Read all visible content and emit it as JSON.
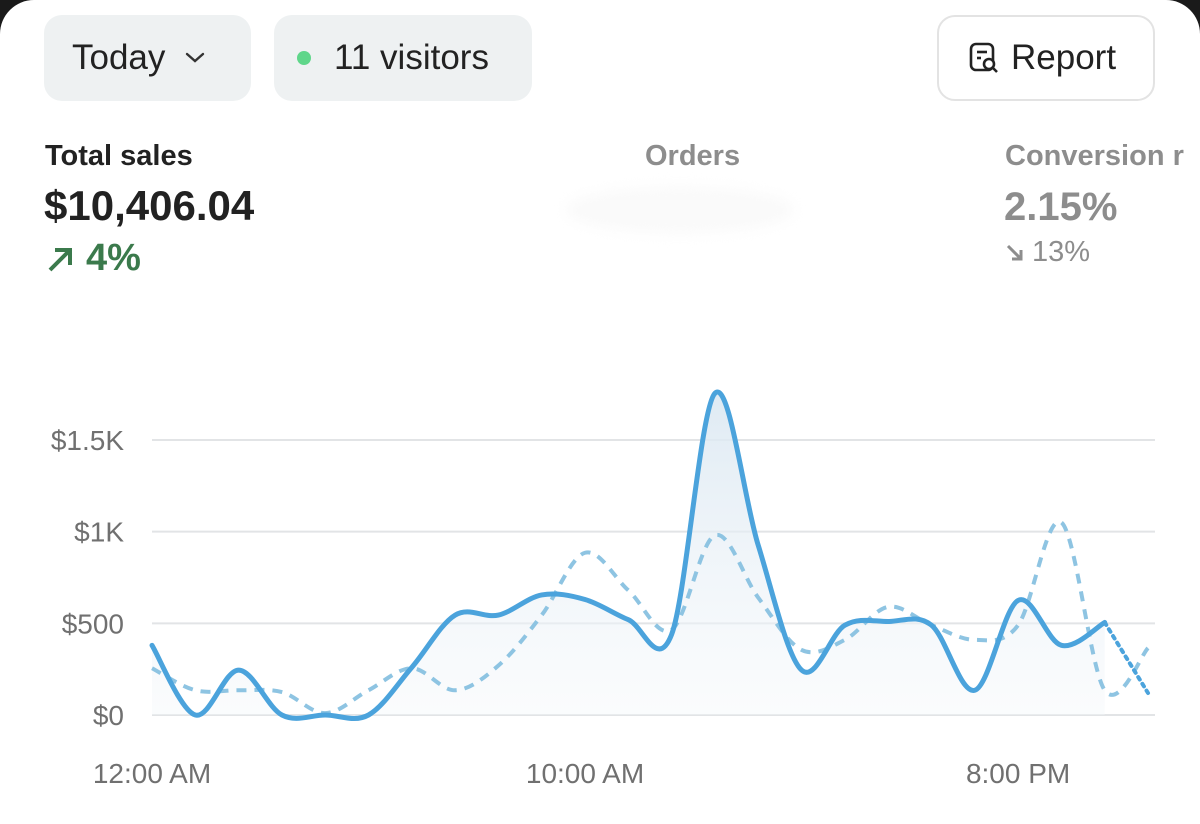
{
  "header": {
    "period": "Today",
    "visitors": "11 visitors",
    "report_button": "Report"
  },
  "metrics": [
    {
      "label": "Total sales",
      "value": "$10,406.04",
      "change": "4%"
    },
    {
      "label": "Orders"
    },
    {
      "label": "Conversion r",
      "value": "2.15%",
      "change": "13%"
    }
  ],
  "chart_data": {
    "type": "line",
    "categories": [
      "12:00 AM",
      null,
      null,
      null,
      null,
      null,
      null,
      null,
      null,
      null,
      "10:00 AM",
      null,
      null,
      null,
      null,
      null,
      null,
      null,
      null,
      null,
      "8:00 PM",
      null,
      null,
      null
    ],
    "series": [
      {
        "color": "#4ba3dc",
        "values": [
          380,
          0,
          245,
          0,
          0,
          0,
          260,
          545,
          545,
          655,
          630,
          520,
          440,
          1755,
          925,
          245,
          490,
          510,
          490,
          135,
          625,
          380,
          505,
          120
        ]
      },
      {
        "color": "#8ec4e2",
        "dash": "dashed",
        "values": [
          255,
          135,
          135,
          125,
          10,
          135,
          255,
          135,
          270,
          545,
          885,
          680,
          465,
          980,
          640,
          355,
          410,
          590,
          490,
          410,
          490,
          1050,
          135,
          365
        ]
      }
    ],
    "ylim": [
      0,
      1800
    ],
    "yticks": [
      {
        "value": 0,
        "label": "$0"
      },
      {
        "value": 500,
        "label": "$500"
      },
      {
        "value": 1000,
        "label": "$1K"
      },
      {
        "value": 1500,
        "label": "$1.5K"
      }
    ],
    "grid": true
  }
}
